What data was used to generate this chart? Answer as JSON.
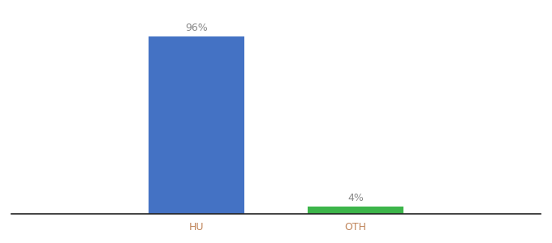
{
  "categories": [
    "HU",
    "OTH"
  ],
  "values": [
    96,
    4
  ],
  "bar_colors": [
    "#4472c4",
    "#3cb54a"
  ],
  "bar_labels": [
    "96%",
    "4%"
  ],
  "ylim": [
    0,
    105
  ],
  "background_color": "#ffffff",
  "label_color": "#888888",
  "axis_label_color": "#c0855a",
  "label_fontsize": 9,
  "tick_fontsize": 9,
  "bar_positions": [
    0.35,
    0.65
  ],
  "bar_width": 0.18
}
